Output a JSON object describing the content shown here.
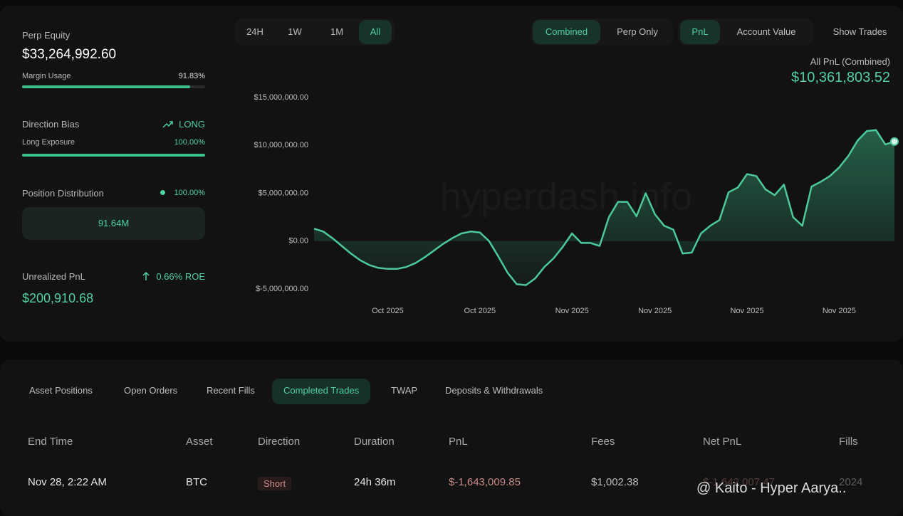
{
  "sidebar": {
    "perp_equity": {
      "label": "Perp Equity",
      "value": "$33,264,992.60"
    },
    "margin_usage": {
      "label": "Margin Usage",
      "value": "91.83%",
      "fill": 91.83
    },
    "direction_bias": {
      "label": "Direction Bias",
      "value": "LONG"
    },
    "long_exposure": {
      "label": "Long Exposure",
      "value": "100.00%",
      "fill": 100
    },
    "position_distribution": {
      "label": "Position Distribution",
      "value": "100.00%",
      "bar_label": "91.64M"
    },
    "unrealized_pnl": {
      "label": "Unrealized PnL",
      "roe": "0.66% ROE",
      "value": "$200,910.68"
    }
  },
  "controls": {
    "ranges": [
      "24H",
      "1W",
      "1M",
      "All"
    ],
    "active_range": 3,
    "modes": [
      "Combined",
      "Perp Only"
    ],
    "active_mode": 0,
    "views": [
      "PnL",
      "Account Value"
    ],
    "active_view": 0,
    "show_trades": "Show Trades"
  },
  "chart_header": {
    "label": "All PnL (Combined)",
    "value": "$10,361,803.52"
  },
  "watermark": "hyperdash.info",
  "chart": {
    "type": "line",
    "color": "#4cc99a",
    "grid": false,
    "categories": [
      null,
      null,
      null,
      null,
      null,
      null,
      null,
      null,
      "Oct 2025",
      null,
      null,
      null,
      null,
      null,
      null,
      null,
      null,
      null,
      "Oct 2025",
      null,
      null,
      null,
      null,
      null,
      null,
      null,
      null,
      null,
      "Nov 2025",
      null,
      null,
      null,
      null,
      null,
      null,
      null,
      null,
      "Nov 2025",
      null,
      null,
      null,
      null,
      null,
      null,
      null,
      null,
      null,
      "Nov 2025",
      null,
      null,
      null,
      null,
      null,
      null,
      null,
      null,
      null,
      "Nov 2025",
      null,
      null,
      null,
      null,
      null,
      null
    ],
    "values": [
      1300000,
      1000000,
      300000,
      -500000,
      -1300000,
      -2000000,
      -2500000,
      -2800000,
      -2900000,
      -2900000,
      -2700000,
      -2300000,
      -1700000,
      -1000000,
      -300000,
      300000,
      800000,
      1000000,
      900000,
      0,
      -1600000,
      -3300000,
      -4500000,
      -4600000,
      -3900000,
      -2700000,
      -1800000,
      -600000,
      800000,
      -200000,
      -200000,
      -500000,
      2500000,
      4100000,
      4100000,
      2600000,
      5000000,
      2800000,
      1600000,
      1200000,
      -1300000,
      -1200000,
      800000,
      1600000,
      2200000,
      5100000,
      5600000,
      7000000,
      6800000,
      5400000,
      4800000,
      5900000,
      2500000,
      1600000,
      5700000,
      6200000,
      6800000,
      7700000,
      8900000,
      10500000,
      11500000,
      11600000,
      10100000,
      10400000
    ],
    "ylim": [
      -5000000,
      15000000
    ],
    "yticks": [
      {
        "value": -5000000,
        "label": "$-5,000,000.00"
      },
      {
        "value": 0,
        "label": "$0.00"
      },
      {
        "value": 5000000,
        "label": "$5,000,000.00"
      },
      {
        "value": 10000000,
        "label": "$10,000,000.00"
      },
      {
        "value": 15000000,
        "label": "$15,000,000.00"
      }
    ]
  },
  "tabs": {
    "items": [
      "Asset Positions",
      "Open Orders",
      "Recent Fills",
      "Completed Trades",
      "TWAP",
      "Deposits & Withdrawals"
    ],
    "active": 3
  },
  "table": {
    "columns": [
      "End Time",
      "Asset",
      "Direction",
      "Duration",
      "PnL",
      "Fees",
      "Net PnL",
      "Fills"
    ],
    "rows": [
      [
        "Nov 28, 2:22 AM",
        "BTC",
        "Short",
        "24h 36m",
        "$-1,643,009.85",
        "$1,002.38",
        "$-1,642,007.47",
        "2024"
      ]
    ]
  },
  "overlay": "@ Kaito - Hyper Aarya.."
}
